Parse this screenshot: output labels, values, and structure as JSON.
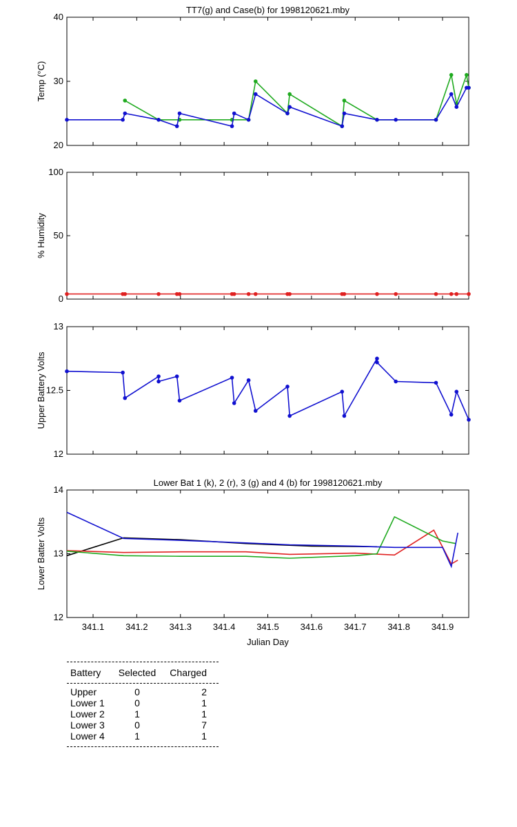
{
  "chart_data": [
    {
      "type": "line",
      "title": "TT7(g) and Case(b) for 1998120621.mby",
      "xlabel": "",
      "ylabel": "Temp  (°C)",
      "xlim": [
        341.04,
        341.96
      ],
      "ylim": [
        20,
        40
      ],
      "yticks": [
        "20",
        "30",
        "40"
      ],
      "series": [
        {
          "name": "TT7",
          "color": "#1faa1f",
          "x": [
            341.173,
            341.25,
            341.298,
            341.418,
            341.456,
            341.472,
            341.545,
            341.55,
            341.67,
            341.675,
            341.75,
            341.885,
            341.92,
            341.932,
            341.955,
            341.96
          ],
          "y": [
            27,
            24,
            24,
            24,
            24,
            30,
            25,
            28,
            23,
            27,
            24,
            24,
            31,
            26.5,
            31,
            29
          ]
        },
        {
          "name": "Case",
          "color": "#1010d0",
          "x": [
            341.04,
            341.168,
            341.173,
            341.25,
            341.292,
            341.298,
            341.418,
            341.423,
            341.456,
            341.472,
            341.545,
            341.55,
            341.67,
            341.675,
            341.75,
            341.793,
            341.885,
            341.92,
            341.932,
            341.955,
            341.96
          ],
          "y": [
            24,
            24,
            25,
            24,
            23,
            25,
            23,
            25,
            24,
            28,
            25,
            26,
            23,
            25,
            24,
            24,
            24,
            28,
            26,
            29,
            29
          ]
        }
      ]
    },
    {
      "type": "line",
      "title": "",
      "xlabel": "",
      "ylabel": "% Humidity",
      "xlim": [
        341.04,
        341.96
      ],
      "ylim": [
        0,
        100
      ],
      "yticks": [
        "0",
        "50",
        "100"
      ],
      "series": [
        {
          "name": "Humidity",
          "color": "#e02020",
          "x": [
            341.04,
            341.168,
            341.173,
            341.25,
            341.292,
            341.298,
            341.418,
            341.423,
            341.456,
            341.472,
            341.545,
            341.55,
            341.67,
            341.675,
            341.75,
            341.793,
            341.885,
            341.92,
            341.932,
            341.96
          ],
          "y": [
            4,
            4,
            4,
            4,
            4,
            4,
            4,
            4,
            4,
            4,
            4,
            4,
            4,
            4,
            4,
            4,
            4,
            4,
            4,
            4
          ]
        }
      ]
    },
    {
      "type": "line",
      "title": "",
      "xlabel": "",
      "ylabel": "Upper Battery Volts",
      "xlim": [
        341.04,
        341.96
      ],
      "ylim": [
        12,
        13
      ],
      "yticks": [
        "12",
        "12.5",
        "13"
      ],
      "series": [
        {
          "name": "Upper",
          "color": "#1010d0",
          "x": [
            341.04,
            341.168,
            341.173,
            341.25,
            341.25,
            341.292,
            341.298,
            341.418,
            341.423,
            341.456,
            341.472,
            341.545,
            341.55,
            341.67,
            341.675,
            341.75,
            341.75,
            341.793,
            341.885,
            341.92,
            341.932,
            341.96
          ],
          "y": [
            12.65,
            12.64,
            12.44,
            12.61,
            12.57,
            12.61,
            12.42,
            12.6,
            12.4,
            12.58,
            12.34,
            12.53,
            12.3,
            12.49,
            12.3,
            12.75,
            12.72,
            12.57,
            12.56,
            12.31,
            12.49,
            12.27
          ]
        }
      ]
    },
    {
      "type": "line",
      "title": "Lower Bat 1 (k), 2 (r), 3 (g) and 4 (b) for 1998120621.mby",
      "xlabel": "Julian Day",
      "ylabel": "Lower Batter Volts",
      "xlim": [
        341.04,
        341.96
      ],
      "ylim": [
        12,
        14
      ],
      "yticks": [
        "12",
        "13",
        "14"
      ],
      "xticks": [
        "341.1",
        "341.2",
        "341.3",
        "341.4",
        "341.5",
        "341.6",
        "341.7",
        "341.8",
        "341.9"
      ],
      "series": [
        {
          "name": "Lower 1",
          "color": "#000000",
          "x": [
            341.04,
            341.17,
            341.3,
            341.45,
            341.6,
            341.75
          ],
          "y": [
            12.97,
            13.25,
            13.22,
            13.16,
            13.12,
            13.11
          ]
        },
        {
          "name": "Lower 2",
          "color": "#e02020",
          "x": [
            341.04,
            341.17,
            341.3,
            341.45,
            341.55,
            341.7,
            341.79,
            341.88,
            341.92,
            341.935
          ],
          "y": [
            13.05,
            13.02,
            13.03,
            13.03,
            12.99,
            13.01,
            12.98,
            13.37,
            12.84,
            12.9
          ]
        },
        {
          "name": "Lower 3",
          "color": "#1faa1f",
          "x": [
            341.04,
            341.17,
            341.3,
            341.45,
            341.55,
            341.7,
            341.75,
            341.79,
            341.9,
            341.93
          ],
          "y": [
            13.04,
            12.97,
            12.96,
            12.96,
            12.93,
            12.97,
            13.0,
            13.58,
            13.2,
            13.16
          ]
        },
        {
          "name": "Lower 4",
          "color": "#1010d0",
          "x": [
            341.04,
            341.17,
            341.3,
            341.45,
            341.55,
            341.7,
            341.79,
            341.9,
            341.92,
            341.935
          ],
          "y": [
            13.65,
            13.24,
            13.21,
            13.17,
            13.14,
            13.12,
            13.1,
            13.1,
            12.8,
            13.33
          ]
        }
      ]
    }
  ],
  "battery_table": {
    "headers": [
      "Battery",
      "Selected",
      "Charged"
    ],
    "rows": [
      [
        "Upper",
        "0",
        "2"
      ],
      [
        "Lower 1",
        "0",
        "1"
      ],
      [
        "Lower 2",
        "1",
        "1"
      ],
      [
        "Lower 3",
        "0",
        "7"
      ],
      [
        "Lower 4",
        "1",
        "1"
      ]
    ]
  }
}
